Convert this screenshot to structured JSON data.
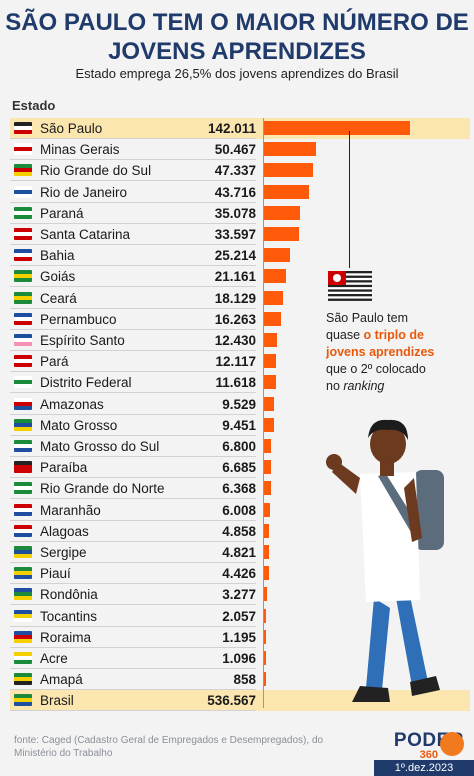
{
  "title": "SÃO PAULO TEM O MAIOR NÚMERO DE JOVENS APRENDIZES",
  "subtitle": "Estado emprega 26,5% dos jovens aprendizes do Brasil",
  "column_header": "Estado",
  "annotation": {
    "line1": "São Paulo tem",
    "line2_pre": "quase ",
    "line2_hl": "o triplo de",
    "line3_hl": "jovens aprendizes",
    "line4": "que o 2º colocado",
    "line5_pre": "no ",
    "line5_it": "ranking"
  },
  "footer": "fonte: Caged (Cadastro Geral de Empregados e Desempregados), do Ministério do Trabalho",
  "brand": {
    "name": "PODER",
    "num": "360"
  },
  "date": "1º.dez.2023",
  "colors": {
    "bar": "#ff5a0a",
    "title": "#1f3a6b",
    "highlight": "#fbe6b0",
    "accent": "#e8590c"
  },
  "chart_data": {
    "type": "bar",
    "orientation": "horizontal",
    "categories": [
      "São Paulo",
      "Minas Gerais",
      "Rio Grande do Sul",
      "Rio de Janeiro",
      "Paraná",
      "Santa Catarina",
      "Bahia",
      "Goiás",
      "Ceará",
      "Pernambuco",
      "Espírito Santo",
      "Pará",
      "Distrito Federal",
      "Amazonas",
      "Mato Grosso",
      "Mato Grosso do Sul",
      "Paraíba",
      "Rio Grande do Norte",
      "Maranhão",
      "Alagoas",
      "Sergipe",
      "Piauí",
      "Rondônia",
      "Tocantins",
      "Roraima",
      "Acre",
      "Amapá",
      "Brasil"
    ],
    "values": [
      142011,
      50467,
      47337,
      43716,
      35078,
      33597,
      25214,
      21161,
      18129,
      16263,
      12430,
      12117,
      11618,
      9529,
      9451,
      6800,
      6685,
      6368,
      6008,
      4858,
      4821,
      4426,
      3277,
      2057,
      1195,
      1096,
      858,
      536567
    ],
    "value_labels": [
      "142.011",
      "50.467",
      "47.337",
      "43.716",
      "35.078",
      "33.597",
      "25.214",
      "21.161",
      "18.129",
      "16.263",
      "12.430",
      "12.117",
      "11.618",
      "9.529",
      "9.451",
      "6.800",
      "6.685",
      "6.368",
      "6.008",
      "4.858",
      "4.821",
      "4.426",
      "3.277",
      "2.057",
      "1.195",
      "1.096",
      "858",
      "536.567"
    ],
    "highlighted": [
      "São Paulo",
      "Brasil"
    ],
    "bars_drawn_for": 27,
    "flag_colors": [
      [
        "#222",
        "#fff",
        "#c00"
      ],
      [
        "#fff",
        "#c00",
        "#fff"
      ],
      [
        "#1b8a3a",
        "#c00",
        "#f5d000"
      ],
      [
        "#fff",
        "#1d4ea0",
        "#fff"
      ],
      [
        "#1b8a3a",
        "#fff",
        "#1b8a3a"
      ],
      [
        "#c00",
        "#fff",
        "#c00"
      ],
      [
        "#1d4ea0",
        "#fff",
        "#c00"
      ],
      [
        "#1b8a3a",
        "#f5d000",
        "#1b8a3a"
      ],
      [
        "#1b8a3a",
        "#f5d000",
        "#1b8a3a"
      ],
      [
        "#1d4ea0",
        "#fff",
        "#c00"
      ],
      [
        "#1d4ea0",
        "#fff",
        "#f78fb3"
      ],
      [
        "#c00",
        "#fff",
        "#c00"
      ],
      [
        "#fff",
        "#1b8a3a",
        "#fff"
      ],
      [
        "#fff",
        "#c00",
        "#1d4ea0"
      ],
      [
        "#1b8a3a",
        "#1d4ea0",
        "#f5d000"
      ],
      [
        "#1b8a3a",
        "#fff",
        "#1d4ea0"
      ],
      [
        "#222",
        "#c00",
        "#c00"
      ],
      [
        "#1b8a3a",
        "#fff",
        "#1b8a3a"
      ],
      [
        "#c00",
        "#fff",
        "#1d4ea0"
      ],
      [
        "#c00",
        "#fff",
        "#1d4ea0"
      ],
      [
        "#1b8a3a",
        "#1d4ea0",
        "#f5d000"
      ],
      [
        "#1b8a3a",
        "#f5d000",
        "#1d4ea0"
      ],
      [
        "#1d4ea0",
        "#1b8a3a",
        "#f5d000"
      ],
      [
        "#1d4ea0",
        "#f5d000",
        "#fff"
      ],
      [
        "#1d4ea0",
        "#c00",
        "#f5d000"
      ],
      [
        "#f5d000",
        "#fff",
        "#1b8a3a"
      ],
      [
        "#1b8a3a",
        "#f5d000",
        "#222"
      ],
      [
        "#1b8a3a",
        "#f5d000",
        "#1d4ea0"
      ]
    ]
  }
}
